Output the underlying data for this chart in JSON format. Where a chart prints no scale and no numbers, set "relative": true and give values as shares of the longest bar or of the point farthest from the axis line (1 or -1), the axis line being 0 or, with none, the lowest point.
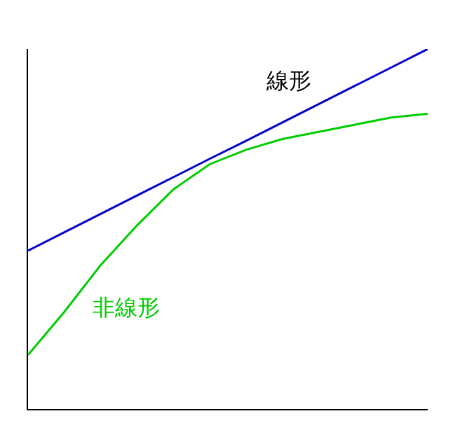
{
  "chart_data": {
    "type": "line",
    "relative": true,
    "categories": [
      null,
      null,
      null,
      null,
      null,
      null,
      null,
      null,
      null,
      null,
      null,
      null
    ],
    "series": [
      {
        "name": "線形",
        "color": "#0000cc",
        "values": [
          0.44,
          0.491,
          0.542,
          0.593,
          0.644,
          0.695,
          0.745,
          0.796,
          0.847,
          0.898,
          0.949,
          1
        ]
      },
      {
        "name": "非線形",
        "color": "#00cc00",
        "values": [
          0.15,
          0.27,
          0.4,
          0.51,
          0.61,
          0.68,
          0.72,
          0.75,
          0.77,
          0.79,
          0.81,
          0.82
        ]
      }
    ],
    "legend": false,
    "grid": false,
    "marker": "none",
    "line_style": "solid"
  }
}
